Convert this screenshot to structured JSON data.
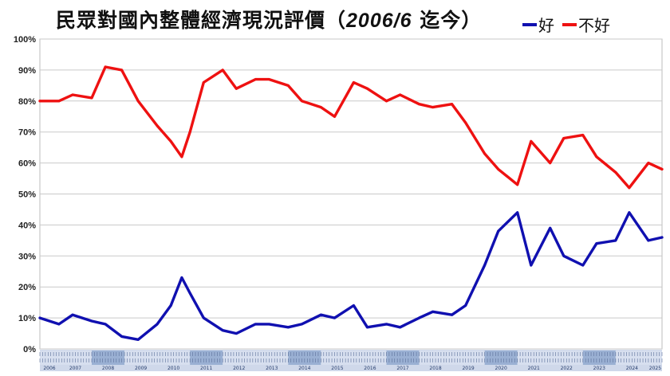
{
  "title": {
    "main": "民眾對國內整體經濟現況評價",
    "paren_open": "（",
    "period": "2006/6",
    "since": "迄今",
    "paren_close": "）"
  },
  "colors": {
    "good": "#1010b0",
    "bad": "#ee1111",
    "grid": "#c9c9c9",
    "axis_bar": "#cfd8ea",
    "axis_bar_dark": "#6f8fbf"
  },
  "chart_data": {
    "type": "line",
    "x_start": "2006-06",
    "x_end": "2025-06",
    "xlabel": "",
    "ylabel": "",
    "ylim": [
      0,
      100
    ],
    "yticks": [
      "0%",
      "10%",
      "20%",
      "30%",
      "40%",
      "50%",
      "60%",
      "70%",
      "80%",
      "90%",
      "100%"
    ],
    "year_labels": [
      "2006",
      "2007",
      "2008",
      "2009",
      "2010",
      "2011",
      "2012",
      "2013",
      "2014",
      "2015",
      "2016",
      "2017",
      "2018",
      "2019",
      "2020",
      "2021",
      "2022",
      "2023",
      "2024",
      "2025"
    ],
    "grid": true,
    "legend": "top-right",
    "series": [
      {
        "name": "好",
        "color": "#1010b0",
        "x": [
          "2006-06",
          "2007-01",
          "2007-06",
          "2008-01",
          "2008-06",
          "2008-12",
          "2009-06",
          "2010-01",
          "2010-06",
          "2010-10",
          "2011-01",
          "2011-06",
          "2012-01",
          "2012-06",
          "2013-01",
          "2013-06",
          "2014-01",
          "2014-06",
          "2015-01",
          "2015-06",
          "2016-01",
          "2016-06",
          "2017-01",
          "2017-06",
          "2018-01",
          "2018-06",
          "2019-01",
          "2019-06",
          "2020-01",
          "2020-06",
          "2021-01",
          "2021-06",
          "2022-01",
          "2022-06",
          "2023-01",
          "2023-06",
          "2024-01",
          "2024-06",
          "2025-01",
          "2025-06"
        ],
        "y": [
          10,
          8,
          11,
          9,
          8,
          4,
          3,
          8,
          14,
          23,
          18,
          10,
          6,
          5,
          8,
          8,
          7,
          8,
          11,
          10,
          14,
          7,
          8,
          7,
          10,
          12,
          11,
          14,
          27,
          38,
          44,
          27,
          39,
          30,
          27,
          34,
          35,
          44,
          35,
          36
        ]
      },
      {
        "name": "不好",
        "color": "#ee1111",
        "x": [
          "2006-06",
          "2007-01",
          "2007-06",
          "2008-01",
          "2008-06",
          "2008-12",
          "2009-06",
          "2010-01",
          "2010-06",
          "2010-10",
          "2011-01",
          "2011-06",
          "2012-01",
          "2012-06",
          "2013-01",
          "2013-06",
          "2014-01",
          "2014-06",
          "2015-01",
          "2015-06",
          "2016-01",
          "2016-06",
          "2017-01",
          "2017-06",
          "2018-01",
          "2018-06",
          "2019-01",
          "2019-06",
          "2020-01",
          "2020-06",
          "2021-01",
          "2021-06",
          "2022-01",
          "2022-06",
          "2023-01",
          "2023-06",
          "2024-01",
          "2024-06",
          "2025-01",
          "2025-06"
        ],
        "y": [
          80,
          80,
          82,
          81,
          91,
          90,
          80,
          72,
          67,
          62,
          70,
          86,
          90,
          84,
          87,
          87,
          85,
          80,
          78,
          75,
          86,
          84,
          80,
          82,
          79,
          78,
          79,
          73,
          63,
          58,
          53,
          67,
          60,
          68,
          69,
          62,
          57,
          52,
          60,
          58
        ]
      }
    ]
  }
}
